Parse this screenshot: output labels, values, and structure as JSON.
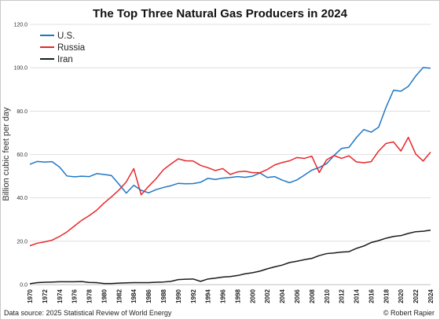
{
  "chart_data": {
    "type": "line",
    "title": "The Top Three Natural Gas Producers in 2024",
    "xlabel": "",
    "ylabel": "Billion cubic feet per day",
    "ylim": [
      0,
      120
    ],
    "xlim": [
      1970,
      2024
    ],
    "yticks": [
      "0.0",
      "20.0",
      "40.0",
      "60.0",
      "80.0",
      "100.0",
      "120.0"
    ],
    "x": [
      1970,
      1971,
      1972,
      1973,
      1974,
      1975,
      1976,
      1977,
      1978,
      1979,
      1980,
      1981,
      1982,
      1983,
      1984,
      1985,
      1986,
      1987,
      1988,
      1989,
      1990,
      1991,
      1992,
      1993,
      1994,
      1995,
      1996,
      1997,
      1998,
      1999,
      2000,
      2001,
      2002,
      2003,
      2004,
      2005,
      2006,
      2007,
      2008,
      2009,
      2010,
      2011,
      2012,
      2013,
      2014,
      2015,
      2016,
      2017,
      2018,
      2019,
      2020,
      2021,
      2022,
      2023,
      2024
    ],
    "xtick_labels": [
      "1970",
      "1972",
      "1974",
      "1976",
      "1978",
      "1980",
      "1982",
      "1984",
      "1986",
      "1988",
      "1990",
      "1992",
      "1994",
      "1996",
      "1998",
      "2000",
      "2002",
      "2004",
      "2006",
      "2008",
      "2010",
      "2012",
      "2014",
      "2016",
      "2018",
      "2020",
      "2022",
      "2024"
    ],
    "grid": true,
    "legend_position": "top-left",
    "series": [
      {
        "name": "U.S.",
        "color": "#1f77c4",
        "values": [
          55.5,
          56.8,
          56.5,
          56.7,
          54.2,
          50.1,
          49.7,
          50.0,
          49.8,
          51.2,
          50.8,
          50.3,
          46.3,
          42.2,
          45.8,
          43.5,
          42.3,
          43.8,
          44.8,
          45.6,
          46.7,
          46.5,
          46.6,
          47.2,
          49.0,
          48.5,
          49.1,
          49.4,
          49.8,
          49.5,
          50.0,
          51.5,
          49.4,
          49.8,
          48.2,
          47.0,
          48.3,
          50.5,
          52.8,
          54.0,
          55.8,
          59.6,
          62.8,
          63.3,
          67.8,
          71.5,
          70.3,
          72.6,
          81.8,
          89.6,
          89.2,
          91.4,
          96.2,
          100.1,
          99.8
        ]
      },
      {
        "name": "Russia",
        "color": "#e8262a",
        "values": [
          17.9,
          19.1,
          19.7,
          20.5,
          22.2,
          24.3,
          27.0,
          29.7,
          31.8,
          34.3,
          37.6,
          40.5,
          43.6,
          47.4,
          53.5,
          41.4,
          45.3,
          48.8,
          53.0,
          55.6,
          58.0,
          57.1,
          57.0,
          55.0,
          53.9,
          52.6,
          53.5,
          50.8,
          52.0,
          52.3,
          51.6,
          51.6,
          53.1,
          55.2,
          56.3,
          57.1,
          58.6,
          58.2,
          59.2,
          51.7,
          57.6,
          59.5,
          58.2,
          59.4,
          56.6,
          56.2,
          56.7,
          61.6,
          65.1,
          65.8,
          61.6,
          67.9,
          60.2,
          57.0,
          61.1
        ]
      },
      {
        "name": "Iran",
        "color": "#1a1a1a",
        "values": [
          0.4,
          0.9,
          1.1,
          1.2,
          1.3,
          1.3,
          1.3,
          1.4,
          1.0,
          0.9,
          0.5,
          0.5,
          0.7,
          0.8,
          0.9,
          0.9,
          0.9,
          1.1,
          1.2,
          1.5,
          2.3,
          2.5,
          2.6,
          1.5,
          2.6,
          3.0,
          3.5,
          3.7,
          4.2,
          5.0,
          5.5,
          6.2,
          7.3,
          8.2,
          9.0,
          10.2,
          10.8,
          11.5,
          12.1,
          13.4,
          14.3,
          14.6,
          15.0,
          15.2,
          16.7,
          17.8,
          19.4,
          20.3,
          21.4,
          22.2,
          22.6,
          23.6,
          24.4,
          24.6,
          25.1
        ]
      }
    ]
  },
  "footer": {
    "source": "Data source: 2025 Statistical Review of World Energy",
    "credit": "© Robert Rapier"
  }
}
